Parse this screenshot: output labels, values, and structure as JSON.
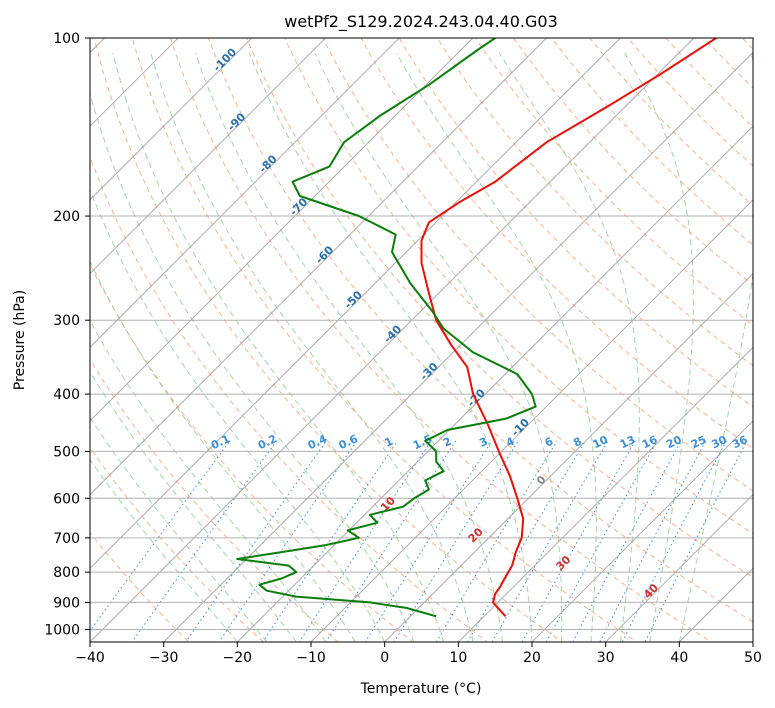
{
  "chart_data": {
    "type": "line",
    "subtype": "skew-t log-p diagram",
    "title": "wetPf2_S129.2024.243.04.40.G03",
    "xlabel": "Temperature (°C)",
    "ylabel": "Pressure (hPa)",
    "xlim": [
      -40,
      50
    ],
    "ylim": [
      1050,
      100
    ],
    "y_scale": "log",
    "grid": true,
    "x_ticks": [
      -40,
      -30,
      -20,
      -10,
      0,
      10,
      20,
      30,
      40,
      50
    ],
    "x_tick_labels": [
      "−40",
      "−30",
      "−20",
      "−10",
      "0",
      "10",
      "20",
      "30",
      "40",
      "50"
    ],
    "y_ticks": [
      1000,
      900,
      800,
      700,
      600,
      500,
      400,
      300,
      200,
      100
    ],
    "y_tick_labels": [
      "1000",
      "900",
      "800",
      "700",
      "600",
      "500",
      "400",
      "300",
      "200",
      "100"
    ],
    "colors": {
      "temperature": "#e8100a",
      "dewpoint": "#0a7d0a",
      "isotherm": "#999999",
      "dry_adiabat": "#f4a582",
      "moist_adiabat": "#9fcf9f",
      "mixing_ratio": "#3d8fd6",
      "isotherm_label": "#2a6fa8",
      "moist_label": "#d03030"
    },
    "isotherm_labels": [
      "-100",
      "-90",
      "-80",
      "-70",
      "-60",
      "-50",
      "-40",
      "-30",
      "-20",
      "-10",
      "0"
    ],
    "moist_adiabat_labels": [
      "10",
      "20",
      "30",
      "40"
    ],
    "mixing_ratio_labels": [
      "0.1",
      "0.2",
      "0.4",
      "0.6",
      "1",
      "1.5",
      "2",
      "3",
      "4",
      "6",
      "8",
      "10",
      "13",
      "16",
      "20",
      "25",
      "30",
      "36"
    ],
    "series": [
      {
        "name": "Temperature",
        "color": "#e8100a",
        "points": [
          [
            950,
            16.4
          ],
          [
            900,
            14.7
          ],
          [
            870,
            15.0
          ],
          [
            850,
            15.6
          ],
          [
            820,
            16.3
          ],
          [
            780,
            17.3
          ],
          [
            740,
            17.8
          ],
          [
            700,
            18.6
          ],
          [
            650,
            18.8
          ],
          [
            600,
            18.0
          ],
          [
            550,
            17.0
          ],
          [
            500,
            15.5
          ],
          [
            450,
            14.0
          ],
          [
            400,
            12.0
          ],
          [
            360,
            11.2
          ],
          [
            330,
            9.0
          ],
          [
            300,
            7.0
          ],
          [
            270,
            6.0
          ],
          [
            240,
            5.0
          ],
          [
            220,
            5.0
          ],
          [
            205,
            6.0
          ],
          [
            190,
            10.0
          ],
          [
            175,
            15.0
          ],
          [
            150,
            22.0
          ],
          [
            130,
            30.5
          ],
          [
            115,
            37.5
          ],
          [
            100,
            45.0
          ]
        ]
      },
      {
        "name": "Dewpoint",
        "color": "#0a7d0a",
        "points": [
          [
            950,
            7.0
          ],
          [
            920,
            3.0
          ],
          [
            900,
            -2.0
          ],
          [
            880,
            -12.0
          ],
          [
            860,
            -16.0
          ],
          [
            840,
            -17.0
          ],
          [
            820,
            -14.0
          ],
          [
            800,
            -12.0
          ],
          [
            780,
            -13.0
          ],
          [
            760,
            -20.0
          ],
          [
            740,
            -14.0
          ],
          [
            720,
            -8.0
          ],
          [
            700,
            -3.5
          ],
          [
            680,
            -5.0
          ],
          [
            660,
            -1.0
          ],
          [
            640,
            -2.0
          ],
          [
            620,
            2.5
          ],
          [
            600,
            4.0
          ],
          [
            580,
            6.0
          ],
          [
            560,
            5.5
          ],
          [
            540,
            8.0
          ],
          [
            520,
            7.0
          ],
          [
            500,
            7.0
          ],
          [
            480,
            5.5
          ],
          [
            460,
            8.5
          ],
          [
            440,
            16.5
          ],
          [
            420,
            20.5
          ],
          [
            400,
            20.0
          ],
          [
            370,
            18.0
          ],
          [
            340,
            12.0
          ],
          [
            310,
            8.0
          ],
          [
            290,
            6.5
          ],
          [
            260,
            3.5
          ],
          [
            230,
            1.0
          ],
          [
            215,
            1.5
          ],
          [
            200,
            -3.5
          ],
          [
            185,
            -11.5
          ],
          [
            175,
            -12.5
          ],
          [
            165,
            -7.5
          ],
          [
            150,
            -5.5
          ],
          [
            135,
            -0.5
          ],
          [
            120,
            6.0
          ],
          [
            105,
            12.5
          ],
          [
            100,
            15.0
          ]
        ]
      }
    ]
  }
}
